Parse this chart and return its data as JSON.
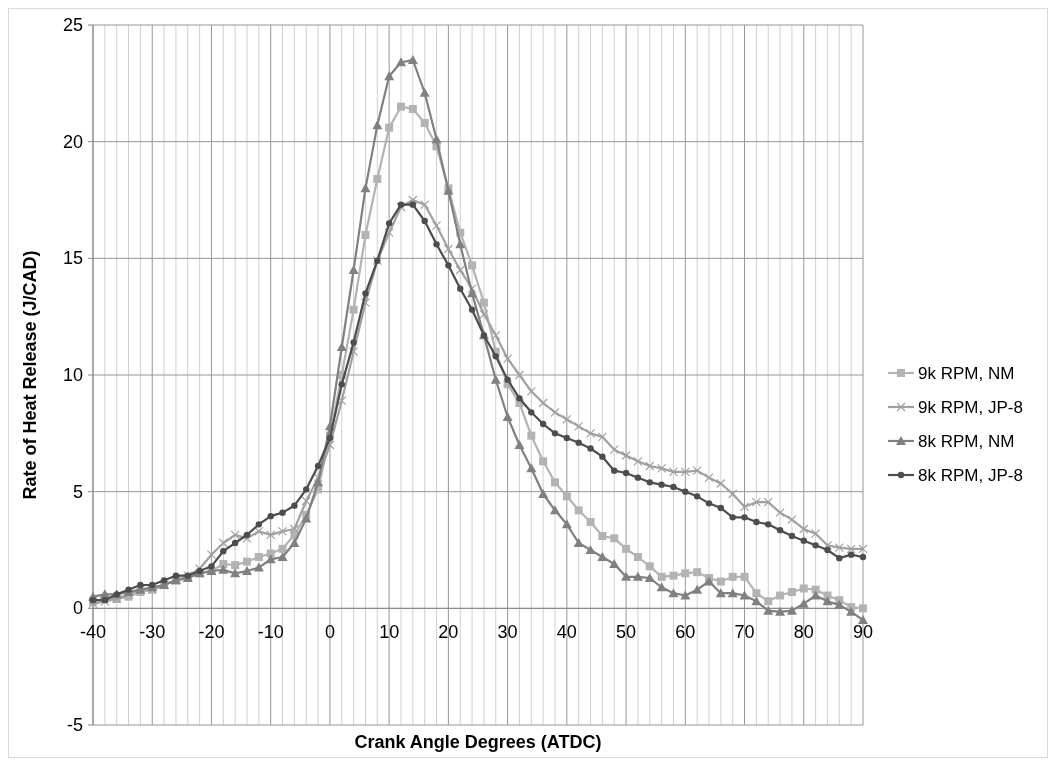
{
  "chart_data": {
    "type": "line",
    "xlabel": "Crank Angle Degrees (ATDC)",
    "ylabel": "Rate of Heat Release (J/CAD)",
    "x": [
      -40,
      -38,
      -36,
      -34,
      -32,
      -30,
      -28,
      -26,
      -24,
      -22,
      -20,
      -18,
      -16,
      -14,
      -12,
      -10,
      -8,
      -6,
      -4,
      -2,
      0,
      2,
      4,
      6,
      8,
      10,
      12,
      14,
      16,
      18,
      20,
      22,
      24,
      26,
      28,
      30,
      32,
      34,
      36,
      38,
      40,
      42,
      44,
      46,
      48,
      50,
      52,
      54,
      56,
      58,
      60,
      62,
      64,
      66,
      68,
      70,
      72,
      74,
      76,
      78,
      80,
      82,
      84,
      86,
      88,
      90
    ],
    "xlim": [
      -40,
      90
    ],
    "xticks": [
      -40,
      {
        "value": -38,
        "label": null
      },
      {
        "value": -36,
        "label": null
      },
      {
        "value": -34,
        "label": null
      },
      {
        "value": -32,
        "label": null
      },
      -30,
      {
        "value": -28,
        "label": null
      },
      {
        "value": -26,
        "label": null
      },
      {
        "value": -24,
        "label": null
      },
      {
        "value": -22,
        "label": null
      },
      -20,
      {
        "value": -18,
        "label": null
      },
      {
        "value": -16,
        "label": null
      },
      {
        "value": -14,
        "label": null
      },
      {
        "value": -12,
        "label": null
      },
      -10,
      {
        "value": -8,
        "label": null
      },
      {
        "value": -6,
        "label": null
      },
      {
        "value": -4,
        "label": null
      },
      {
        "value": -2,
        "label": null
      },
      0,
      {
        "value": 2,
        "label": null
      },
      {
        "value": 4,
        "label": null
      },
      {
        "value": 6,
        "label": null
      },
      {
        "value": 8,
        "label": null
      },
      10,
      {
        "value": 12,
        "label": null
      },
      {
        "value": 14,
        "label": null
      },
      {
        "value": 16,
        "label": null
      },
      {
        "value": 18,
        "label": null
      },
      20,
      {
        "value": 22,
        "label": null
      },
      {
        "value": 24,
        "label": null
      },
      {
        "value": 26,
        "label": null
      },
      {
        "value": 28,
        "label": null
      },
      30,
      {
        "value": 32,
        "label": null
      },
      {
        "value": 34,
        "label": null
      },
      {
        "value": 36,
        "label": null
      },
      {
        "value": 38,
        "label": null
      },
      40,
      {
        "value": 42,
        "label": null
      },
      {
        "value": 44,
        "label": null
      },
      {
        "value": 46,
        "label": null
      },
      {
        "value": 48,
        "label": null
      },
      50,
      {
        "value": 52,
        "label": null
      },
      {
        "value": 54,
        "label": null
      },
      {
        "value": 56,
        "label": null
      },
      {
        "value": 58,
        "label": null
      },
      60,
      {
        "value": 62,
        "label": null
      },
      {
        "value": 64,
        "label": null
      },
      {
        "value": 66,
        "label": null
      },
      {
        "value": 68,
        "label": null
      },
      70,
      {
        "value": 72,
        "label": null
      },
      {
        "value": 74,
        "label": null
      },
      {
        "value": 76,
        "label": null
      },
      {
        "value": 78,
        "label": null
      },
      80,
      {
        "value": 82,
        "label": null
      },
      {
        "value": 84,
        "label": null
      },
      {
        "value": 86,
        "label": null
      },
      {
        "value": 88,
        "label": null
      },
      90
    ],
    "ylim": [
      -5,
      25
    ],
    "yticks": [
      -5,
      0,
      5,
      10,
      15,
      20,
      25
    ],
    "grid": true,
    "legend": "right",
    "line_style": "solid",
    "series": [
      {
        "name": "9k RPM, NM",
        "color": "#b3b3b3",
        "marker": "square",
        "values": [
          0.3,
          0.4,
          0.4,
          0.5,
          0.7,
          0.8,
          1.0,
          1.2,
          1.3,
          1.5,
          1.6,
          1.9,
          1.85,
          2.0,
          2.2,
          2.35,
          2.55,
          3.15,
          4.0,
          5.1,
          7.4,
          10.0,
          12.8,
          16.0,
          18.4,
          20.6,
          21.5,
          21.4,
          20.8,
          19.8,
          18.0,
          16.1,
          14.7,
          13.1,
          11.0,
          9.6,
          8.8,
          7.4,
          6.3,
          5.4,
          4.8,
          4.2,
          3.7,
          3.1,
          3.0,
          2.55,
          2.2,
          1.8,
          1.35,
          1.4,
          1.5,
          1.55,
          1.3,
          1.15,
          1.35,
          1.35,
          0.65,
          0.3,
          0.55,
          0.7,
          0.85,
          0.8,
          0.55,
          0.35,
          0.05,
          0.0
        ]
      },
      {
        "name": "9k RPM, JP-8",
        "color": "#a0a0a0",
        "marker": "cross",
        "values": [
          0.2,
          0.3,
          0.4,
          0.6,
          0.8,
          0.8,
          1.0,
          1.2,
          1.4,
          1.7,
          2.3,
          2.8,
          3.15,
          3.0,
          3.3,
          3.15,
          3.3,
          3.4,
          4.6,
          5.6,
          7.0,
          8.9,
          11.0,
          13.1,
          14.9,
          16.1,
          17.2,
          17.5,
          17.3,
          16.4,
          15.4,
          14.5,
          13.7,
          12.6,
          11.7,
          10.7,
          10.0,
          9.3,
          8.8,
          8.4,
          8.1,
          7.8,
          7.5,
          7.35,
          6.8,
          6.55,
          6.3,
          6.1,
          6.0,
          5.85,
          5.85,
          5.9,
          5.6,
          5.35,
          4.9,
          4.35,
          4.55,
          4.55,
          4.1,
          3.8,
          3.4,
          3.2,
          2.7,
          2.6,
          2.55,
          2.55
        ]
      },
      {
        "name": "8k RPM, NM",
        "color": "#808080",
        "marker": "triangle",
        "values": [
          0.5,
          0.6,
          0.6,
          0.7,
          0.8,
          0.9,
          1.0,
          1.2,
          1.3,
          1.5,
          1.6,
          1.65,
          1.5,
          1.6,
          1.75,
          2.1,
          2.2,
          2.8,
          3.85,
          5.4,
          7.8,
          11.2,
          14.5,
          18.0,
          20.7,
          22.8,
          23.4,
          23.5,
          22.1,
          20.1,
          17.9,
          15.6,
          13.5,
          11.7,
          9.8,
          8.2,
          7.0,
          6.0,
          4.9,
          4.2,
          3.6,
          2.8,
          2.5,
          2.2,
          1.9,
          1.35,
          1.35,
          1.3,
          0.9,
          0.65,
          0.55,
          0.8,
          1.15,
          0.65,
          0.65,
          0.55,
          0.3,
          -0.1,
          -0.15,
          -0.1,
          0.2,
          0.55,
          0.3,
          0.15,
          -0.15,
          -0.5
        ]
      },
      {
        "name": "8k RPM, JP-8",
        "color": "#4d4d4d",
        "marker": "circle",
        "values": [
          0.35,
          0.35,
          0.6,
          0.8,
          1.0,
          1.0,
          1.2,
          1.4,
          1.4,
          1.6,
          1.8,
          2.45,
          2.8,
          3.15,
          3.6,
          3.95,
          4.1,
          4.4,
          5.1,
          6.1,
          7.3,
          9.6,
          11.4,
          13.5,
          14.9,
          16.5,
          17.3,
          17.3,
          16.6,
          15.6,
          14.7,
          13.7,
          12.8,
          11.7,
          10.8,
          9.8,
          9.0,
          8.4,
          7.9,
          7.5,
          7.3,
          7.1,
          6.85,
          6.5,
          5.9,
          5.8,
          5.6,
          5.4,
          5.3,
          5.2,
          5.0,
          4.8,
          4.5,
          4.3,
          3.9,
          3.9,
          3.7,
          3.6,
          3.35,
          3.1,
          2.9,
          2.7,
          2.5,
          2.15,
          2.3,
          2.2
        ]
      }
    ]
  }
}
